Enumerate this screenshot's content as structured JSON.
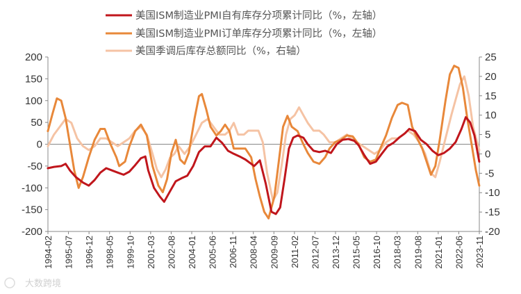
{
  "chart_data": {
    "type": "line",
    "title": "",
    "x_tick_labels": [
      "1994-02",
      "1995-07",
      "1996-12",
      "1998-05",
      "1999-10",
      "2001-03",
      "2002-08",
      "2004-01",
      "2005-06",
      "2006-11",
      "2008-04",
      "2009-09",
      "2011-02",
      "2012-07",
      "2013-12",
      "2015-05",
      "2016-10",
      "2018-03",
      "2019-08",
      "2021-01",
      "2022-06",
      "2023-11"
    ],
    "x_start": 1994.083,
    "x_end": 2023.833,
    "left_axis": {
      "min": -200,
      "max": 200,
      "step": 50,
      "ticks": [
        "200",
        "150",
        "100",
        "50",
        "0",
        "-50",
        "-100",
        "-150",
        "-200"
      ]
    },
    "right_axis": {
      "min": -20,
      "max": 25,
      "step": 5,
      "ticks": [
        "25",
        "20",
        "15",
        "10",
        "5",
        "0",
        "-5",
        "-10",
        "-15",
        "-20"
      ]
    },
    "series": [
      {
        "name": "美国ISM制造业PMI自有库存分项累计同比（%，左轴）",
        "axis": "left",
        "color": "#c0161c",
        "points": [
          [
            1994.08,
            -55
          ],
          [
            1994.5,
            -52
          ],
          [
            1995.0,
            -50
          ],
          [
            1995.3,
            -45
          ],
          [
            1995.6,
            -60
          ],
          [
            1996.0,
            -75
          ],
          [
            1996.5,
            -88
          ],
          [
            1996.9,
            -95
          ],
          [
            1997.3,
            -82
          ],
          [
            1997.7,
            -65
          ],
          [
            1998.1,
            -55
          ],
          [
            1998.5,
            -60
          ],
          [
            1998.9,
            -65
          ],
          [
            1999.3,
            -70
          ],
          [
            1999.7,
            -63
          ],
          [
            2000.1,
            -48
          ],
          [
            2000.5,
            -32
          ],
          [
            2000.8,
            -28
          ],
          [
            2001.0,
            -60
          ],
          [
            2001.4,
            -100
          ],
          [
            2001.8,
            -120
          ],
          [
            2002.1,
            -132
          ],
          [
            2002.5,
            -108
          ],
          [
            2002.9,
            -85
          ],
          [
            2003.3,
            -78
          ],
          [
            2003.7,
            -72
          ],
          [
            2004.1,
            -50
          ],
          [
            2004.5,
            -18
          ],
          [
            2004.9,
            -5
          ],
          [
            2005.3,
            -5
          ],
          [
            2005.7,
            15
          ],
          [
            2006.1,
            3
          ],
          [
            2006.5,
            -15
          ],
          [
            2006.9,
            -22
          ],
          [
            2007.3,
            -28
          ],
          [
            2007.7,
            -35
          ],
          [
            2008.1,
            -45
          ],
          [
            2008.3,
            -50
          ],
          [
            2008.7,
            -37
          ],
          [
            2009.1,
            -90
          ],
          [
            2009.5,
            -155
          ],
          [
            2009.8,
            -160
          ],
          [
            2010.1,
            -145
          ],
          [
            2010.4,
            -80
          ],
          [
            2010.7,
            -10
          ],
          [
            2011.0,
            15
          ],
          [
            2011.3,
            20
          ],
          [
            2011.7,
            15
          ],
          [
            2012.0,
            0
          ],
          [
            2012.4,
            -15
          ],
          [
            2012.8,
            -18
          ],
          [
            2013.2,
            -15
          ],
          [
            2013.6,
            -20
          ],
          [
            2014.0,
            0
          ],
          [
            2014.4,
            10
          ],
          [
            2014.8,
            12
          ],
          [
            2015.2,
            8
          ],
          [
            2015.5,
            -2
          ],
          [
            2015.9,
            -25
          ],
          [
            2016.3,
            -45
          ],
          [
            2016.7,
            -40
          ],
          [
            2017.1,
            -22
          ],
          [
            2017.5,
            -5
          ],
          [
            2017.9,
            3
          ],
          [
            2018.3,
            15
          ],
          [
            2018.7,
            25
          ],
          [
            2019.0,
            35
          ],
          [
            2019.4,
            30
          ],
          [
            2019.8,
            10
          ],
          [
            2020.2,
            0
          ],
          [
            2020.6,
            -15
          ],
          [
            2021.0,
            -25
          ],
          [
            2021.4,
            -20
          ],
          [
            2021.8,
            -10
          ],
          [
            2022.2,
            5
          ],
          [
            2022.6,
            35
          ],
          [
            2022.9,
            62
          ],
          [
            2023.2,
            50
          ],
          [
            2023.5,
            20
          ],
          [
            2023.83,
            -40
          ]
        ]
      },
      {
        "name": "美国ISM制造业PMI订单库存分项累计同比（%，左轴）",
        "axis": "left",
        "color": "#e8883a",
        "points": [
          [
            1994.08,
            30
          ],
          [
            1994.4,
            70
          ],
          [
            1994.7,
            105
          ],
          [
            1995.0,
            100
          ],
          [
            1995.3,
            60
          ],
          [
            1995.6,
            0
          ],
          [
            1995.9,
            -60
          ],
          [
            1996.2,
            -100
          ],
          [
            1996.5,
            -75
          ],
          [
            1996.9,
            -30
          ],
          [
            1997.3,
            10
          ],
          [
            1997.7,
            35
          ],
          [
            1998.0,
            35
          ],
          [
            1998.4,
            0
          ],
          [
            1998.8,
            -30
          ],
          [
            1999.0,
            -50
          ],
          [
            1999.4,
            -40
          ],
          [
            1999.7,
            -5
          ],
          [
            2000.1,
            30
          ],
          [
            2000.5,
            45
          ],
          [
            2000.9,
            20
          ],
          [
            2001.3,
            -50
          ],
          [
            2001.7,
            -95
          ],
          [
            2002.0,
            -110
          ],
          [
            2002.3,
            -80
          ],
          [
            2002.6,
            -20
          ],
          [
            2002.9,
            10
          ],
          [
            2003.2,
            -35
          ],
          [
            2003.5,
            -45
          ],
          [
            2003.8,
            -20
          ],
          [
            2004.2,
            60
          ],
          [
            2004.5,
            110
          ],
          [
            2004.7,
            115
          ],
          [
            2005.0,
            80
          ],
          [
            2005.3,
            40
          ],
          [
            2005.7,
            20
          ],
          [
            2006.0,
            30
          ],
          [
            2006.3,
            45
          ],
          [
            2006.6,
            30
          ],
          [
            2006.9,
            -10
          ],
          [
            2007.3,
            -10
          ],
          [
            2007.7,
            -10
          ],
          [
            2008.1,
            -30
          ],
          [
            2008.4,
            -80
          ],
          [
            2008.7,
            -120
          ],
          [
            2009.0,
            -155
          ],
          [
            2009.3,
            -170
          ],
          [
            2009.7,
            -120
          ],
          [
            2010.0,
            -40
          ],
          [
            2010.3,
            40
          ],
          [
            2010.6,
            65
          ],
          [
            2010.9,
            40
          ],
          [
            2011.3,
            30
          ],
          [
            2011.7,
            0
          ],
          [
            2012.0,
            -20
          ],
          [
            2012.4,
            -40
          ],
          [
            2012.8,
            -45
          ],
          [
            2013.2,
            -30
          ],
          [
            2013.5,
            -10
          ],
          [
            2013.9,
            5
          ],
          [
            2014.3,
            10
          ],
          [
            2014.7,
            20
          ],
          [
            2015.1,
            18
          ],
          [
            2015.5,
            0
          ],
          [
            2015.9,
            -30
          ],
          [
            2016.3,
            -40
          ],
          [
            2016.7,
            -35
          ],
          [
            2017.0,
            -10
          ],
          [
            2017.4,
            20
          ],
          [
            2017.8,
            60
          ],
          [
            2018.2,
            90
          ],
          [
            2018.5,
            95
          ],
          [
            2018.9,
            90
          ],
          [
            2019.2,
            40
          ],
          [
            2019.6,
            10
          ],
          [
            2019.9,
            -10
          ],
          [
            2020.2,
            -40
          ],
          [
            2020.5,
            -70
          ],
          [
            2020.8,
            -50
          ],
          [
            2021.1,
            10
          ],
          [
            2021.5,
            100
          ],
          [
            2021.8,
            160
          ],
          [
            2022.1,
            180
          ],
          [
            2022.4,
            175
          ],
          [
            2022.7,
            130
          ],
          [
            2023.0,
            60
          ],
          [
            2023.3,
            0
          ],
          [
            2023.6,
            -60
          ],
          [
            2023.83,
            -95
          ]
        ]
      },
      {
        "name": "美国季调后库存总额同比（%，右轴）",
        "axis": "right",
        "color": "#f5c3a4",
        "points": [
          [
            1994.08,
            2
          ],
          [
            1994.5,
            5
          ],
          [
            1994.9,
            7
          ],
          [
            1995.3,
            9
          ],
          [
            1995.7,
            8
          ],
          [
            1996.1,
            4
          ],
          [
            1996.5,
            2
          ],
          [
            1996.9,
            1
          ],
          [
            1997.3,
            2
          ],
          [
            1997.7,
            4
          ],
          [
            1998.1,
            4
          ],
          [
            1998.5,
            3
          ],
          [
            1998.9,
            2
          ],
          [
            1999.3,
            3
          ],
          [
            1999.7,
            4
          ],
          [
            2000.1,
            6
          ],
          [
            2000.5,
            7
          ],
          [
            2000.9,
            5
          ],
          [
            2001.3,
            0
          ],
          [
            2001.6,
            -4
          ],
          [
            2001.9,
            -6
          ],
          [
            2002.2,
            -4
          ],
          [
            2002.5,
            -1
          ],
          [
            2002.8,
            0
          ],
          [
            2003.1,
            2
          ],
          [
            2003.5,
            0
          ],
          [
            2003.9,
            2
          ],
          [
            2004.3,
            5
          ],
          [
            2004.7,
            8
          ],
          [
            2005.1,
            9
          ],
          [
            2005.5,
            7
          ],
          [
            2005.9,
            5
          ],
          [
            2006.3,
            5
          ],
          [
            2006.6,
            6
          ],
          [
            2006.9,
            8
          ],
          [
            2007.2,
            5
          ],
          [
            2007.6,
            5
          ],
          [
            2007.9,
            6
          ],
          [
            2008.3,
            6
          ],
          [
            2008.6,
            6
          ],
          [
            2008.9,
            3
          ],
          [
            2009.2,
            -5
          ],
          [
            2009.6,
            -12
          ],
          [
            2009.9,
            -10
          ],
          [
            2010.2,
            -3
          ],
          [
            2010.5,
            5
          ],
          [
            2010.8,
            9
          ],
          [
            2011.1,
            10
          ],
          [
            2011.4,
            12
          ],
          [
            2011.7,
            10
          ],
          [
            2012.0,
            8
          ],
          [
            2012.4,
            6
          ],
          [
            2012.8,
            6
          ],
          [
            2013.1,
            5
          ],
          [
            2013.5,
            3
          ],
          [
            2013.9,
            3
          ],
          [
            2014.3,
            4
          ],
          [
            2014.7,
            5
          ],
          [
            2015.0,
            4
          ],
          [
            2015.4,
            3
          ],
          [
            2015.8,
            2
          ],
          [
            2016.2,
            1
          ],
          [
            2016.6,
            0
          ],
          [
            2017.0,
            1
          ],
          [
            2017.4,
            3
          ],
          [
            2017.8,
            4
          ],
          [
            2018.2,
            4
          ],
          [
            2018.6,
            5
          ],
          [
            2018.9,
            6
          ],
          [
            2019.3,
            5
          ],
          [
            2019.7,
            3
          ],
          [
            2020.1,
            0
          ],
          [
            2020.5,
            -5
          ],
          [
            2020.8,
            -6
          ],
          [
            2021.1,
            -2
          ],
          [
            2021.5,
            4
          ],
          [
            2021.9,
            10
          ],
          [
            2022.2,
            14
          ],
          [
            2022.5,
            18
          ],
          [
            2022.8,
            20
          ],
          [
            2023.1,
            15
          ],
          [
            2023.4,
            7
          ],
          [
            2023.83,
            1
          ]
        ]
      }
    ],
    "legend_position": "top-center",
    "grid": false
  },
  "watermark": "大数跨境"
}
